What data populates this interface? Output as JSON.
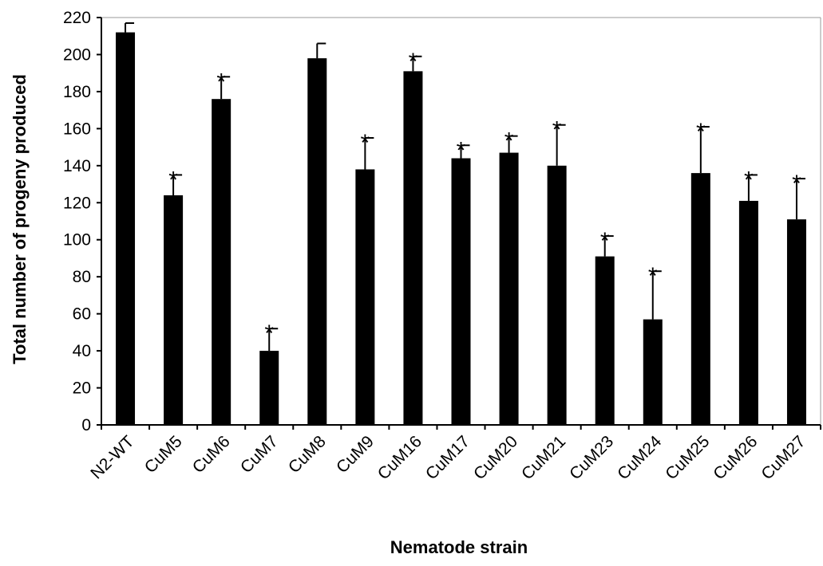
{
  "chart_data": {
    "type": "bar",
    "title": "",
    "xlabel": "Nematode strain",
    "ylabel": "Total number of progeny produced",
    "ylim": [
      0,
      220
    ],
    "yticks": [
      0,
      20,
      40,
      60,
      80,
      100,
      120,
      140,
      160,
      180,
      200,
      220
    ],
    "grid": false,
    "legend": "none",
    "bar_color": "#000000",
    "categories": [
      "N2-WT",
      "CuM5",
      "CuM6",
      "CuM7",
      "CuM8",
      "CuM9",
      "CuM16",
      "CuM17",
      "CuM20",
      "CuM21",
      "CuM23",
      "CuM24",
      "CuM25",
      "CuM26",
      "CuM27"
    ],
    "values": [
      212,
      124,
      176,
      40,
      198,
      138,
      191,
      144,
      147,
      140,
      91,
      57,
      136,
      121,
      111
    ],
    "error": [
      5,
      11,
      12,
      12,
      8,
      17,
      8,
      7,
      9,
      22,
      11,
      26,
      25,
      14,
      22
    ],
    "significance": [
      "",
      "*",
      "*",
      "*",
      "",
      "*",
      "*",
      "*",
      "*",
      "*",
      "*",
      "*",
      "*",
      "*",
      "*"
    ]
  }
}
